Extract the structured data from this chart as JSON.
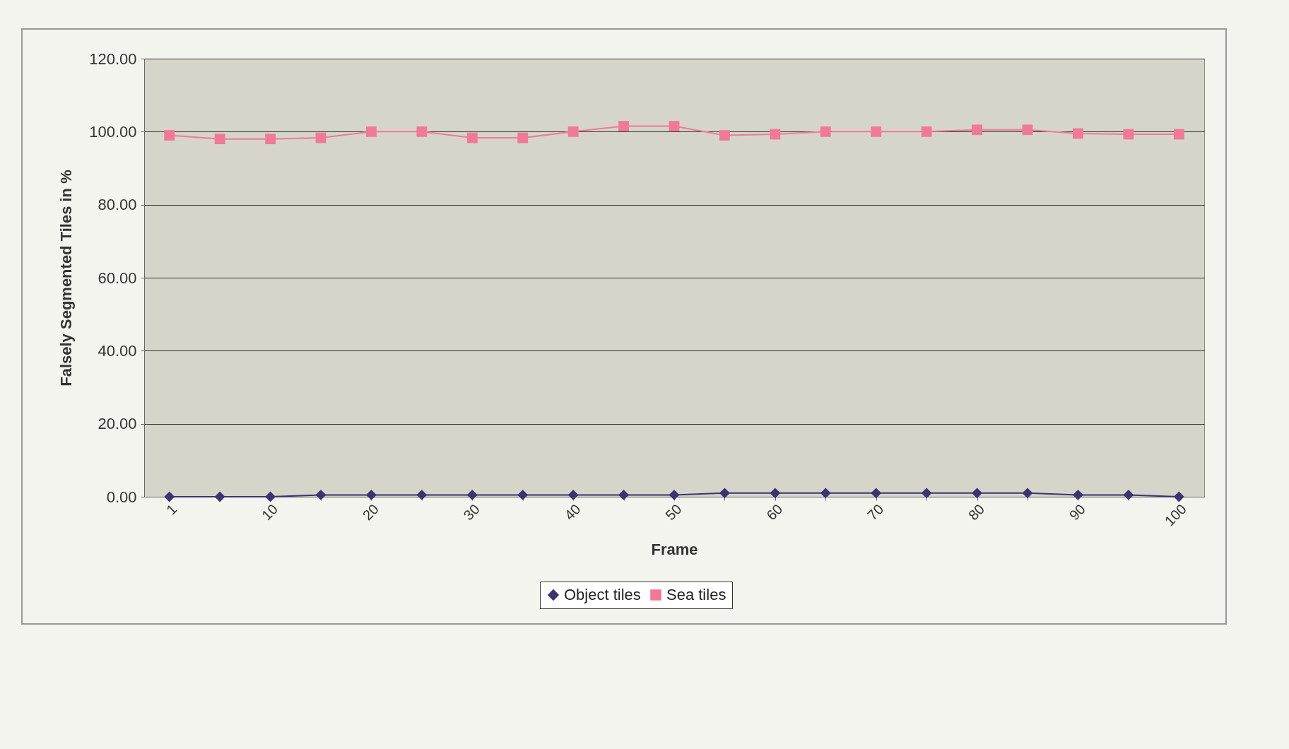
{
  "chart_data": {
    "type": "line",
    "xlabel": "Frame",
    "ylabel": "Falsely Segmented Tiles in %",
    "categories": [
      "1",
      null,
      "10",
      null,
      "20",
      null,
      "30",
      null,
      "40",
      null,
      "50",
      null,
      "60",
      null,
      "70",
      null,
      "80",
      null,
      "90",
      null,
      "100"
    ],
    "series": [
      {
        "name": "Object tiles",
        "color": "#3b3470",
        "marker": "diamond",
        "values": [
          0,
          0,
          0,
          0.5,
          0.5,
          0.5,
          0.5,
          0.5,
          0.5,
          0.5,
          0.5,
          1,
          1,
          1,
          1,
          1,
          1,
          1,
          0.5,
          0.5,
          0
        ]
      },
      {
        "name": "Sea tiles",
        "color": "#f07a95",
        "marker": "square",
        "values": [
          99,
          98,
          98,
          98.3,
          100,
          100,
          98.3,
          98.3,
          100,
          101.5,
          101.5,
          99,
          99.3,
          100,
          100,
          100,
          100.5,
          100.5,
          99.5,
          99.3,
          99.3
        ]
      }
    ],
    "ylim": [
      0,
      120
    ],
    "yticks": [
      {
        "value": 0,
        "label": "0.00"
      },
      {
        "value": 20,
        "label": "20.00"
      },
      {
        "value": 40,
        "label": "40.00"
      },
      {
        "value": 60,
        "label": "60.00"
      },
      {
        "value": 80,
        "label": "80.00"
      },
      {
        "value": 100,
        "label": "100.00"
      },
      {
        "value": 120,
        "label": "120.00"
      }
    ],
    "grid": "y",
    "legend": "bottom",
    "line_style": "solid"
  }
}
